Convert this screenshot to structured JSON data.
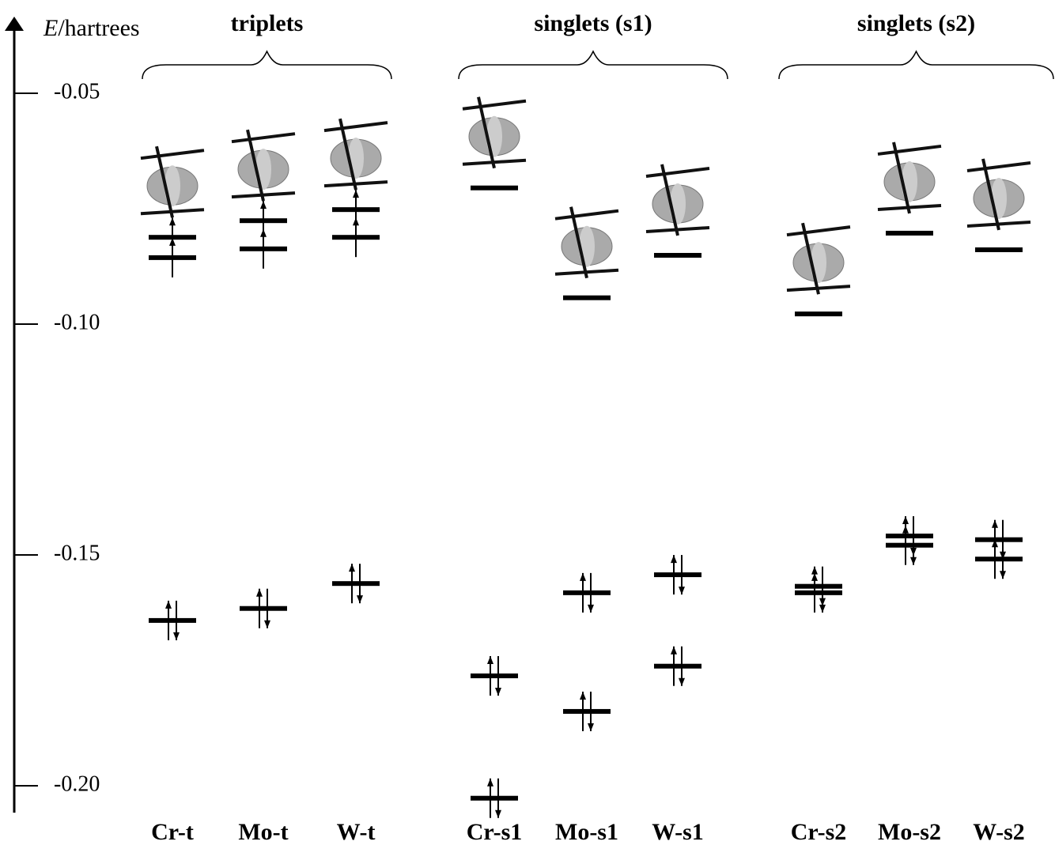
{
  "axis": {
    "symbol": "E",
    "unit": "/hartrees",
    "ylim": [
      -0.206,
      -0.035
    ],
    "yticks": [
      -0.05,
      {
        "value": -0.1,
        "label": "-0.10"
      },
      -0.15,
      {
        "value": -0.2,
        "label": "-0.20"
      }
    ]
  },
  "groups": [
    {
      "title": "triplets",
      "columns": [
        {
          "label": "Cr-t",
          "levels": [
            {
              "energy": -0.0812,
              "electrons": 1
            },
            {
              "energy": -0.0856,
              "electrons": 1
            },
            {
              "energy": -0.1642,
              "electrons": 2
            }
          ]
        },
        {
          "label": "Mo-t",
          "levels": [
            {
              "energy": -0.0776,
              "electrons": 1
            },
            {
              "energy": -0.0837,
              "electrons": 1
            },
            {
              "energy": -0.1616,
              "electrons": 2
            }
          ]
        },
        {
          "label": "W-t",
          "levels": [
            {
              "energy": -0.0752,
              "electrons": 1
            },
            {
              "energy": -0.0812,
              "electrons": 1
            },
            {
              "energy": -0.1562,
              "electrons": 2
            }
          ]
        }
      ]
    },
    {
      "title": "singlets (s1)",
      "columns": [
        {
          "label": "Cr-s1",
          "levels": [
            {
              "energy": -0.0705,
              "electrons": 0
            },
            {
              "energy": -0.1762,
              "electrons": 2
            },
            {
              "energy": -0.2027,
              "electrons": 2
            }
          ]
        },
        {
          "label": "Mo-s1",
          "levels": [
            {
              "energy": -0.0943,
              "electrons": 0
            },
            {
              "energy": -0.1582,
              "electrons": 2
            },
            {
              "energy": -0.1839,
              "electrons": 2
            }
          ]
        },
        {
          "label": "W-s1",
          "levels": [
            {
              "energy": -0.0851,
              "electrons": 0
            },
            {
              "energy": -0.1543,
              "electrons": 2
            },
            {
              "energy": -0.1741,
              "electrons": 2
            }
          ]
        }
      ]
    },
    {
      "title": "singlets (s2)",
      "columns": [
        {
          "label": "Cr-s2",
          "levels": [
            {
              "energy": -0.0978,
              "electrons": 0
            },
            {
              "energy": -0.1568,
              "electrons": 2
            },
            {
              "energy": -0.1582,
              "electrons": 2
            }
          ]
        },
        {
          "label": "Mo-s2",
          "levels": [
            {
              "energy": -0.0803,
              "electrons": 0
            },
            {
              "energy": -0.1459,
              "electrons": 2
            },
            {
              "energy": -0.1479,
              "electrons": 2
            }
          ]
        },
        {
          "label": "W-s2",
          "levels": [
            {
              "energy": -0.0839,
              "electrons": 0
            },
            {
              "energy": -0.1467,
              "electrons": 2
            },
            {
              "energy": -0.1509,
              "electrons": 2
            }
          ]
        }
      ]
    }
  ]
}
